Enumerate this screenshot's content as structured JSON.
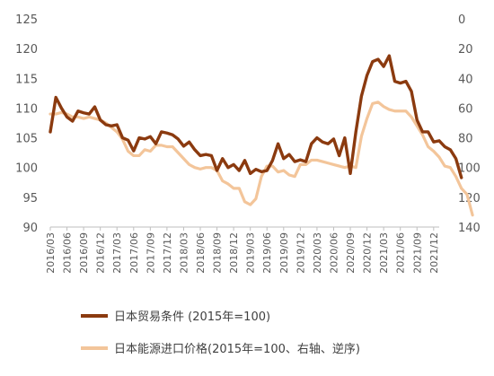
{
  "chart_data": {
    "type": "line",
    "title": "",
    "xlabel": "",
    "ylabel": "",
    "x_tick_labels": [
      "2016/03",
      "2016/06",
      "2016/09",
      "2016/12",
      "2017/03",
      "2017/06",
      "2017/09",
      "2017/12",
      "2018/03",
      "2018/06",
      "2018/09",
      "2018/12",
      "2019/03",
      "2019/06",
      "2019/09",
      "2019/12",
      "2020/03",
      "2020/06",
      "2020/09",
      "2020/12",
      "2021/03",
      "2021/06",
      "2021/09",
      "2021/12"
    ],
    "x_start": "2016/03",
    "ylim_left": [
      90,
      125
    ],
    "yticks_left": [
      90,
      95,
      100,
      105,
      110,
      115,
      120,
      125
    ],
    "ylim_right_inverted": [
      0,
      140
    ],
    "yticks_right": [
      0,
      20,
      40,
      60,
      80,
      100,
      120,
      140
    ],
    "grid": false,
    "legend_position": "bottom",
    "series": [
      {
        "name": "日本贸易条件 (2015年=100)",
        "axis": "left",
        "color": "#8B3A0F",
        "values": [
          106.0,
          111.8,
          110.0,
          108.5,
          107.8,
          109.5,
          109.2,
          109.0,
          110.2,
          108.0,
          107.2,
          107.0,
          107.2,
          105.0,
          104.6,
          102.8,
          105.0,
          104.8,
          105.2,
          104.0,
          106.0,
          105.8,
          105.5,
          104.8,
          103.6,
          104.3,
          103.0,
          102.0,
          102.2,
          102.0,
          99.5,
          101.5,
          100.0,
          100.5,
          99.5,
          101.2,
          99.0,
          99.7,
          99.3,
          99.5,
          101.2,
          104.0,
          101.5,
          102.2,
          101.0,
          101.3,
          101.0,
          104.0,
          105.0,
          104.3,
          104.0,
          104.8,
          102.0,
          105.0,
          99.0,
          106.0,
          112.0,
          115.5,
          117.8,
          118.2,
          117.0,
          118.8,
          114.5,
          114.2,
          114.5,
          112.8,
          108.0,
          106.0,
          106.0,
          104.3,
          104.5,
          103.5,
          103.0,
          101.5,
          98.3
        ]
      },
      {
        "name": "日本能源进口价格(2015年=100、右轴、逆序)",
        "axis": "right",
        "color": "#F3C59A",
        "values": [
          64,
          64,
          63,
          64,
          66,
          66,
          67,
          66,
          67,
          68,
          70,
          73,
          76,
          81,
          89,
          92,
          92,
          88,
          89,
          85,
          85,
          86,
          86,
          90,
          94,
          98,
          100,
          101,
          100,
          100,
          102,
          109,
          111,
          114,
          114,
          123,
          125,
          121,
          106,
          99,
          99,
          103,
          102,
          105,
          106,
          98,
          98,
          95,
          95,
          96,
          97,
          98,
          99,
          100,
          99,
          100,
          79,
          67,
          57,
          56,
          59,
          61,
          62,
          62,
          62,
          66,
          72,
          78,
          86,
          89,
          93,
          99,
          100,
          106,
          114,
          118,
          132
        ]
      }
    ]
  }
}
